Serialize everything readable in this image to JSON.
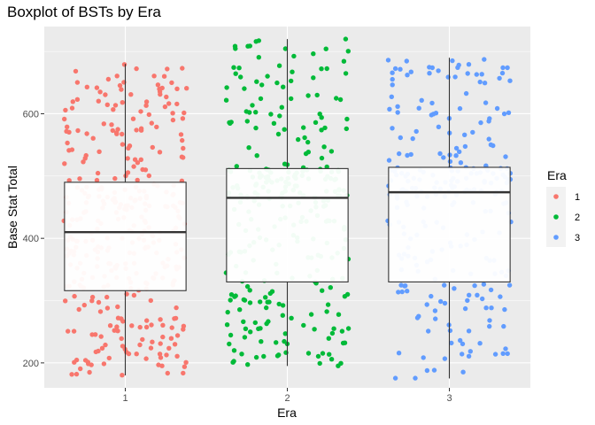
{
  "chart_data": {
    "type": "boxplot",
    "title": "Boxplot of BSTs by Era",
    "xlabel": "Era",
    "ylabel": "Base Stat Total",
    "categories": [
      "1",
      "2",
      "3"
    ],
    "y_ticks": [
      200,
      400,
      600
    ],
    "ylim": [
      160,
      740
    ],
    "grid": true,
    "legend": {
      "title": "Era",
      "placement": "right",
      "entries": [
        "1",
        "2",
        "3"
      ]
    },
    "colors": {
      "1": "#F8766D",
      "2": "#00BA38",
      "3": "#619CFF",
      "panel": "#EBEBEB",
      "grid": "#FFFFFF"
    },
    "boxes": [
      {
        "category": "1",
        "min": 180,
        "q1": 316,
        "median": 410,
        "q3": 490,
        "max": 680
      },
      {
        "category": "2",
        "min": 195,
        "q1": 330,
        "median": 465,
        "q3": 512,
        "max": 720
      },
      {
        "category": "3",
        "min": 175,
        "q1": 330,
        "median": 474,
        "q3": 514,
        "max": 690
      }
    ],
    "outliers": [
      {
        "category": "2",
        "y": 720
      }
    ]
  }
}
